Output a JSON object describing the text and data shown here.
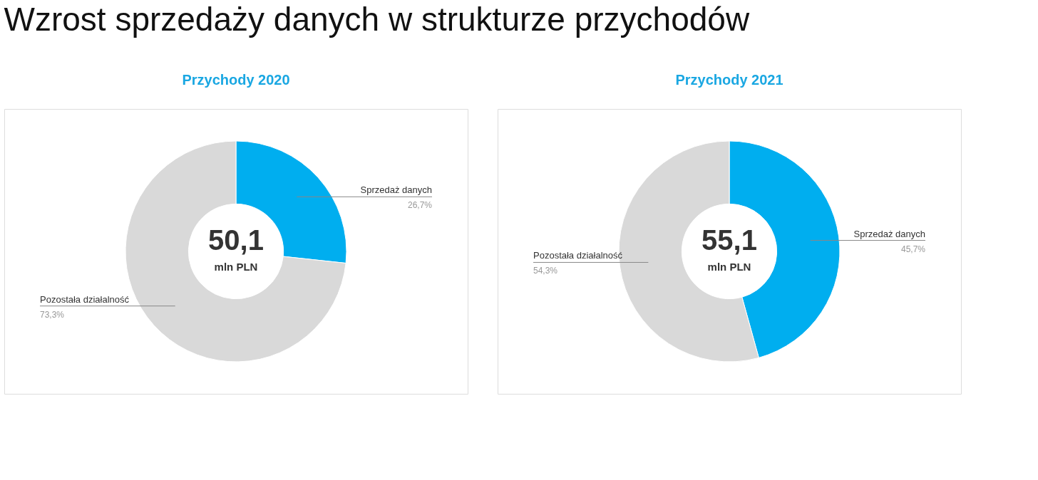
{
  "chart_data": [
    {
      "type": "donut",
      "title": "Wzrost sprzedaży danych w strukturze przychodów",
      "subtitle": "Przychody 2020",
      "categories": [
        "Sprzedaż danych",
        "Pozostała działalność"
      ],
      "values": [
        26.7,
        73.3
      ],
      "colors": [
        "#00aeef",
        "#d9d9d9"
      ],
      "value_labels": [
        "26,7%",
        "73,3%"
      ],
      "annotations": [
        "50,1",
        "mln PLN"
      ]
    },
    {
      "type": "donut",
      "subtitle": "Przychody 2021",
      "categories": [
        "Sprzedaż danych",
        "Pozostała działalność"
      ],
      "values": [
        45.7,
        54.3
      ],
      "colors": [
        "#00aeef",
        "#d9d9d9"
      ],
      "value_labels": [
        "45,7%",
        "54,3%"
      ],
      "annotations": [
        "55,1",
        "mln PLN"
      ]
    }
  ]
}
